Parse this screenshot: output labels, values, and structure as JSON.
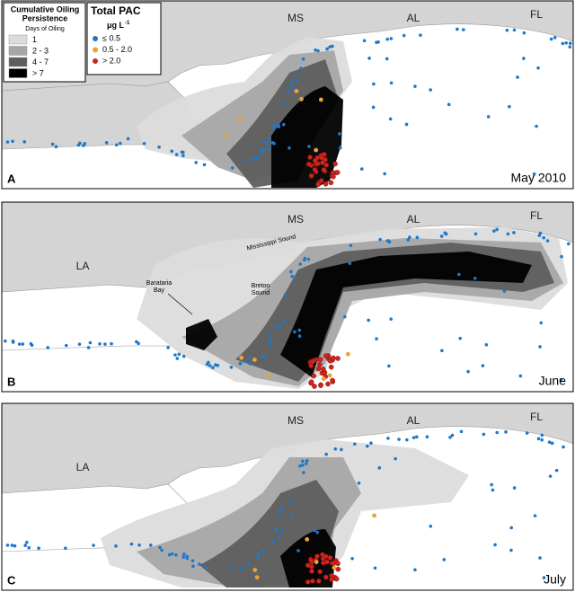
{
  "legend": {
    "oiling": {
      "title": [
        "Cumulative Oiling",
        "Persistence"
      ],
      "subtitle": "Days of Oiling",
      "items": [
        "1",
        "2 - 3",
        "4 - 7",
        "> 7"
      ]
    },
    "pac": {
      "title": "Total PAC",
      "unit": "μg L",
      "unit_exponent": "-1",
      "items": [
        "≤ 0.5",
        "0.5 - 2.0",
        "> 2.0"
      ]
    }
  },
  "panels": [
    {
      "letter": "A",
      "month": "May 2010",
      "places": [
        "MS",
        "AL",
        "FL"
      ]
    },
    {
      "letter": "B",
      "month": "June",
      "places": [
        "MS",
        "AL",
        "FL",
        "LA"
      ],
      "annotations": [
        "Mississippi Sound",
        "Breton",
        "Sound",
        "Barataria",
        "Bay"
      ]
    },
    {
      "letter": "C",
      "month": "July",
      "places": [
        "MS",
        "AL",
        "FL",
        "LA"
      ]
    }
  ]
}
